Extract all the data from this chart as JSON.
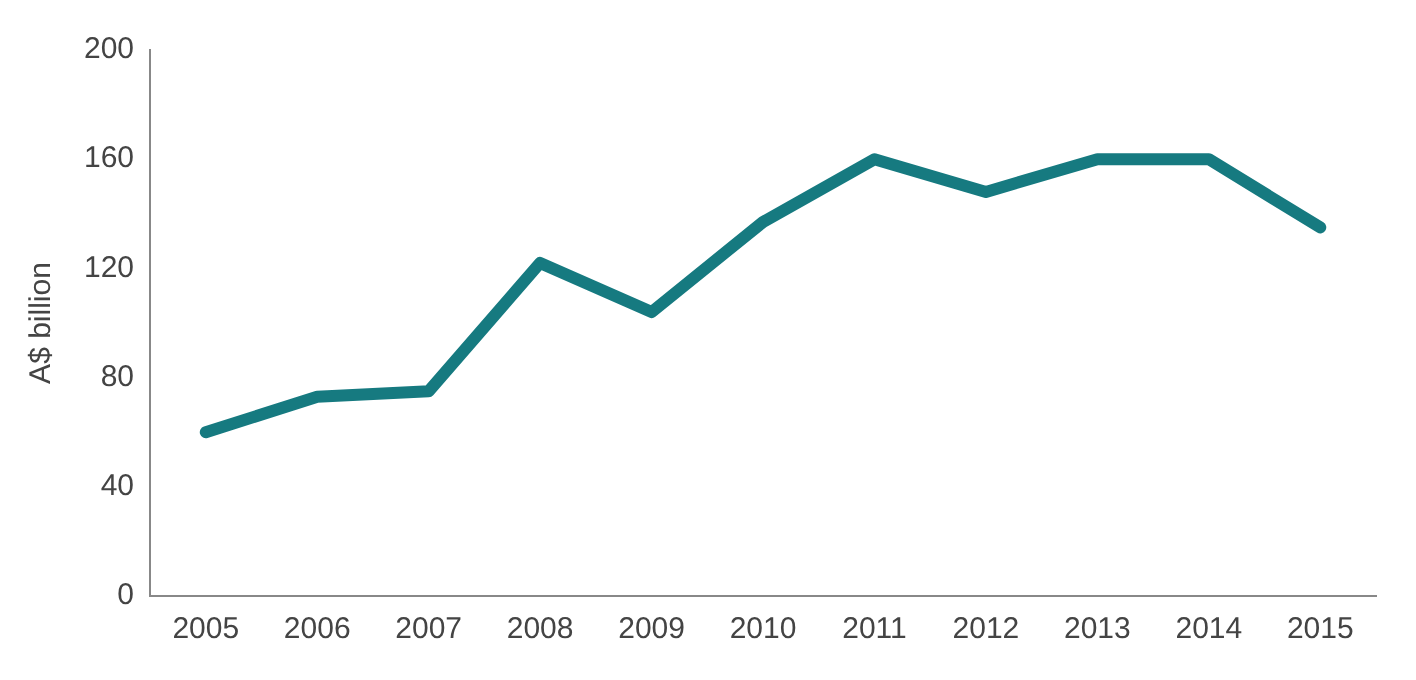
{
  "chart_data": {
    "type": "line",
    "ylabel": "A$ billion",
    "categories": [
      "2005",
      "2006",
      "2007",
      "2008",
      "2009",
      "2010",
      "2011",
      "2012",
      "2013",
      "2014",
      "2015"
    ],
    "series": [
      {
        "color": "#167a80",
        "values": [
          60,
          73,
          75,
          122,
          104,
          137,
          160,
          148,
          160,
          160,
          135
        ]
      }
    ],
    "ylim": [
      0,
      200
    ],
    "yticks": [
      0,
      40,
      80,
      120,
      160,
      200
    ],
    "grid": false,
    "legend": false,
    "marker": "none",
    "line_style": "solid"
  }
}
